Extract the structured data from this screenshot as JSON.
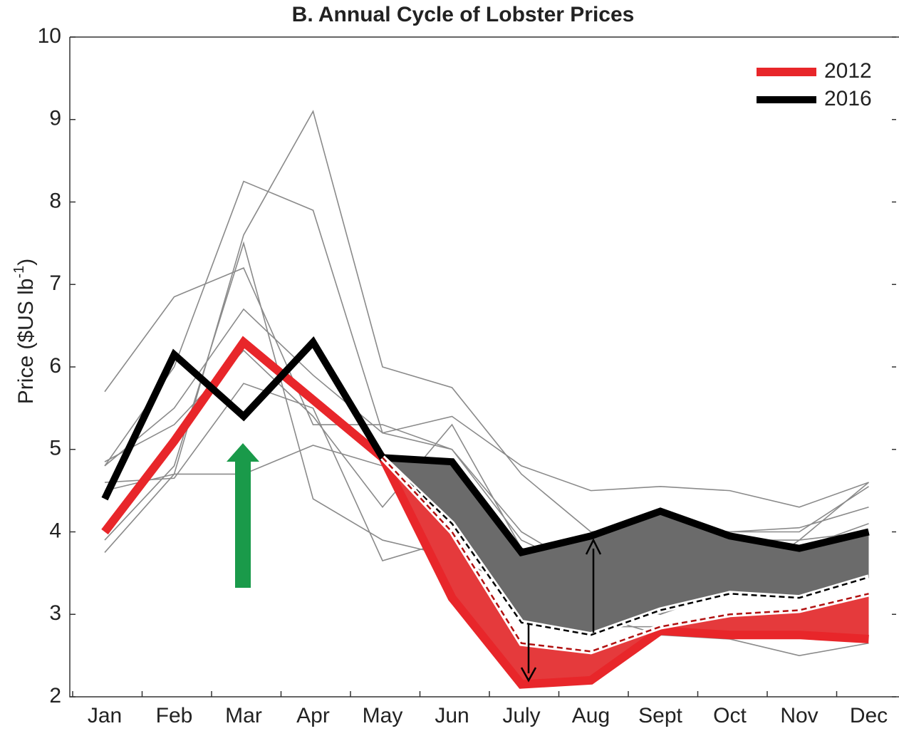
{
  "chart_data": {
    "type": "line",
    "title": "B. Annual Cycle of Lobster Prices",
    "y_label": {
      "text": "Price ($US lb",
      "sup": "-1",
      "tail": ")"
    },
    "categories": [
      "Jan",
      "Feb",
      "Mar",
      "Apr",
      "May",
      "Jun",
      "July",
      "Aug",
      "Sept",
      "Oct",
      "Nov",
      "Dec"
    ],
    "ylim": [
      2,
      10
    ],
    "yticks": [
      2,
      3,
      4,
      5,
      6,
      7,
      8,
      9,
      10
    ],
    "legend": "upper right",
    "series": [
      {
        "name": "2012",
        "color": "#e8262a",
        "values": [
          4.0,
          5.1,
          6.3,
          5.6,
          4.9,
          3.2,
          2.15,
          2.2,
          2.8,
          2.75,
          2.75,
          2.7
        ]
      },
      {
        "name": "2016",
        "color": "#000000",
        "values": [
          4.4,
          6.15,
          5.4,
          6.3,
          4.9,
          4.85,
          3.75,
          3.95,
          4.25,
          3.95,
          3.8,
          4.0
        ]
      }
    ],
    "other_years": {
      "color": "#8a8a8a",
      "lines": [
        [
          5.7,
          6.85,
          7.2,
          5.3,
          5.3,
          5.0,
          4.0,
          3.5,
          3.0,
          3.6,
          3.8,
          4.1
        ],
        [
          4.8,
          6.0,
          8.25,
          7.9,
          5.2,
          5.4,
          4.8,
          4.5,
          4.55,
          4.5,
          4.3,
          4.6
        ],
        [
          4.5,
          4.7,
          7.6,
          9.1,
          6.0,
          5.75,
          4.7,
          4.0,
          4.1,
          4.0,
          4.0,
          4.55
        ],
        [
          4.8,
          5.5,
          6.7,
          5.9,
          5.2,
          5.0,
          3.9,
          3.5,
          3.2,
          3.9,
          3.9,
          4.0
        ],
        [
          3.75,
          4.7,
          4.7,
          5.05,
          4.8,
          4.0,
          3.6,
          3.0,
          2.75,
          2.7,
          2.5,
          2.65
        ],
        [
          3.9,
          4.8,
          7.5,
          4.4,
          3.9,
          3.7,
          3.3,
          2.85,
          2.85,
          2.95,
          2.9,
          3.2
        ],
        [
          4.85,
          5.3,
          6.2,
          5.4,
          4.3,
          5.3,
          3.8,
          3.7,
          3.9,
          4.0,
          4.05,
          4.3
        ],
        [
          4.6,
          4.65,
          5.8,
          5.5,
          3.65,
          3.9,
          3.4,
          3.2,
          3.0,
          3.3,
          3.9,
          4.6
        ]
      ]
    },
    "bands": [
      {
        "color": "#6b6b6b",
        "edge": "#000000",
        "upper": [
          null,
          null,
          null,
          null,
          4.9,
          4.85,
          3.75,
          3.95,
          4.25,
          3.95,
          3.8,
          4.0
        ],
        "lower": [
          null,
          null,
          null,
          null,
          4.9,
          4.1,
          2.9,
          2.75,
          3.05,
          3.25,
          3.2,
          3.45
        ]
      },
      {
        "color": "#e53a3c",
        "edge": "#b01010",
        "upper": [
          null,
          null,
          null,
          null,
          4.9,
          4.0,
          2.65,
          2.55,
          2.85,
          3.0,
          3.05,
          3.25
        ],
        "lower": [
          null,
          null,
          null,
          null,
          4.9,
          3.2,
          2.15,
          2.2,
          2.8,
          2.75,
          2.75,
          2.7
        ]
      }
    ]
  }
}
